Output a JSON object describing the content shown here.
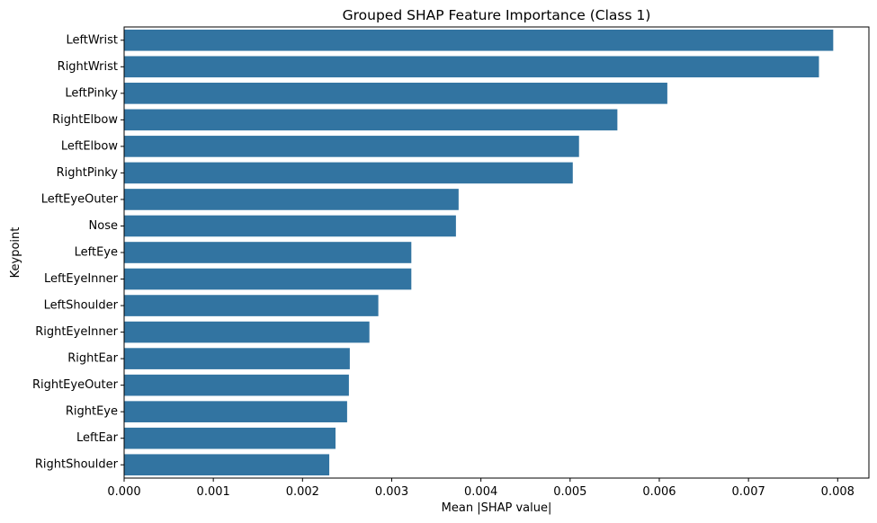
{
  "chart_data": {
    "type": "bar",
    "orientation": "horizontal",
    "title": "Grouped SHAP Feature Importance (Class 1)",
    "xlabel": "Mean |SHAP value|",
    "ylabel": "Keypoint",
    "xlim": [
      0,
      0.00835
    ],
    "xticks": [
      "0.000",
      "0.001",
      "0.002",
      "0.003",
      "0.004",
      "0.005",
      "0.006",
      "0.007",
      "0.008"
    ],
    "bar_color": "#3274a1",
    "categories": [
      "LeftWrist",
      "RightWrist",
      "LeftPinky",
      "RightElbow",
      "LeftElbow",
      "RightPinky",
      "LeftEyeOuter",
      "Nose",
      "LeftEye",
      "LeftEyeInner",
      "LeftShoulder",
      "RightEyeInner",
      "RightEar",
      "RightEyeOuter",
      "RightEye",
      "LeftEar",
      "RightShoulder"
    ],
    "values": [
      0.00795,
      0.00779,
      0.00609,
      0.00553,
      0.0051,
      0.00503,
      0.00375,
      0.00372,
      0.00322,
      0.00322,
      0.00285,
      0.00275,
      0.00253,
      0.00252,
      0.0025,
      0.00237,
      0.0023
    ]
  }
}
